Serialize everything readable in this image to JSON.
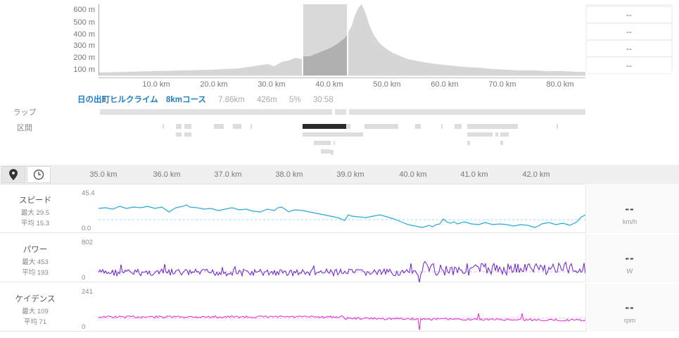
{
  "elevation": {
    "y_labels": [
      "600 m",
      "500 m",
      "400 m",
      "300 m",
      "200 m",
      "100 m"
    ],
    "x_labels": [
      "10.0 km",
      "20.0 km",
      "30.0 km",
      "40.0 km",
      "50.0 km",
      "60.0 km",
      "70.0 km",
      "80.0 km"
    ],
    "selection_km": [
      35.0,
      42.8
    ]
  },
  "side_values": [
    "--",
    "--",
    "--",
    "--"
  ],
  "course": {
    "name": "日の出町ヒルクライム",
    "distance_label": "8kmコース",
    "distance": "7.86km",
    "elevation": "426m",
    "grade": "5%",
    "time": "30:58"
  },
  "row_labels": {
    "lap": "ラップ",
    "segment": "区間"
  },
  "toolbar": {
    "map_icon": "map-pin-icon",
    "time_icon": "clock-icon"
  },
  "detail_x_labels": [
    "35.0 km",
    "36.0 km",
    "37.0 km",
    "38.0 km",
    "39.0 km",
    "40.0 km",
    "41.0 km",
    "42.0 km"
  ],
  "metrics": [
    {
      "key": "speed",
      "name": "スピード",
      "max_label": "最大 29.5",
      "avg_label": "平均 15.3",
      "ymax": "45.4",
      "ymin": "0.0",
      "value": "--",
      "unit": "km/h",
      "color": "#29a9d6"
    },
    {
      "key": "power",
      "name": "パワー",
      "max_label": "最大 453",
      "avg_label": "平均 193",
      "ymax": "802",
      "ymin": "0",
      "value": "--",
      "unit": "W",
      "color": "#6a1fd1"
    },
    {
      "key": "cadence",
      "name": "ケイデンス",
      "max_label": "最大 109",
      "avg_label": "平均 71",
      "ymax": "241",
      "ymin": "0",
      "value": "--",
      "unit": "rpm",
      "color": "#e528d8"
    }
  ]
}
